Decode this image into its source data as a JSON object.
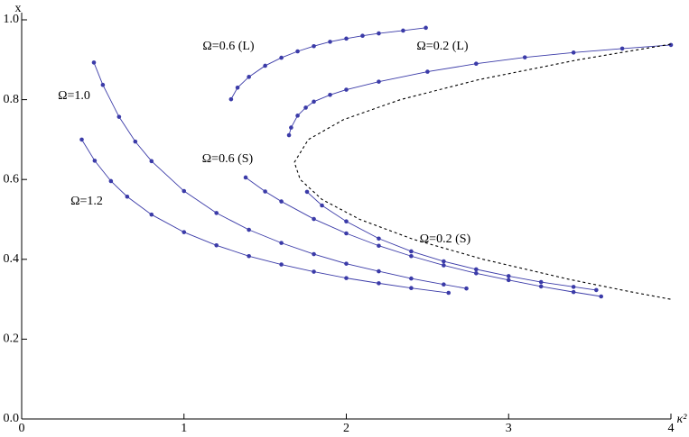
{
  "chart_data": {
    "type": "line",
    "x_label": "κ²",
    "y_label": "x",
    "xlim": [
      0,
      4
    ],
    "ylim": [
      0,
      1.0
    ],
    "xticks": [
      0,
      1,
      2,
      3,
      4
    ],
    "yticks": [
      {
        "value": 0,
        "label": "0.0"
      },
      0.2,
      0.4,
      0.6,
      0.8,
      {
        "value": 1.0,
        "label": "1.0"
      }
    ],
    "series": [
      {
        "name": "Ω=0.6 (L)",
        "color": "#3b3ba8",
        "markers": true,
        "dashed": false,
        "x": [
          1.29,
          1.33,
          1.4,
          1.5,
          1.6,
          1.7,
          1.8,
          1.9,
          2.0,
          2.1,
          2.2,
          2.35,
          2.49
        ],
        "values": [
          0.801,
          0.83,
          0.857,
          0.885,
          0.905,
          0.921,
          0.934,
          0.945,
          0.953,
          0.96,
          0.966,
          0.973,
          0.98
        ]
      },
      {
        "name": "Ω=0.2 (L)",
        "color": "#3b3ba8",
        "markers": true,
        "dashed": false,
        "x": [
          1.647,
          1.66,
          1.7,
          1.75,
          1.8,
          1.9,
          2.0,
          2.2,
          2.5,
          2.8,
          3.1,
          3.4,
          3.7,
          4.0
        ],
        "values": [
          0.711,
          0.73,
          0.76,
          0.78,
          0.795,
          0.812,
          0.825,
          0.845,
          0.87,
          0.89,
          0.906,
          0.918,
          0.928,
          0.937
        ]
      },
      {
        "name": "Ω=1.0",
        "color": "#3b3ba8",
        "markers": true,
        "dashed": false,
        "x": [
          0.445,
          0.5,
          0.6,
          0.7,
          0.8,
          1.0,
          1.2,
          1.4,
          1.6,
          1.8,
          2.0,
          2.2,
          2.4,
          2.6,
          2.74
        ],
        "values": [
          0.893,
          0.837,
          0.757,
          0.695,
          0.646,
          0.571,
          0.516,
          0.474,
          0.441,
          0.413,
          0.389,
          0.37,
          0.352,
          0.337,
          0.327
        ]
      },
      {
        "name": "Ω=0.6 (S)",
        "color": "#3b3ba8",
        "markers": true,
        "dashed": false,
        "x": [
          1.38,
          1.5,
          1.6,
          1.8,
          2.0,
          2.2,
          2.4,
          2.6,
          2.8,
          3.0,
          3.2,
          3.4,
          3.57
        ],
        "values": [
          0.605,
          0.57,
          0.545,
          0.501,
          0.465,
          0.434,
          0.408,
          0.385,
          0.365,
          0.348,
          0.332,
          0.318,
          0.307
        ]
      },
      {
        "name": "Ω=1.2",
        "color": "#3b3ba8",
        "markers": true,
        "dashed": false,
        "x": [
          0.37,
          0.45,
          0.55,
          0.65,
          0.8,
          1.0,
          1.2,
          1.4,
          1.6,
          1.8,
          2.0,
          2.2,
          2.4,
          2.63
        ],
        "values": [
          0.7,
          0.647,
          0.596,
          0.557,
          0.512,
          0.468,
          0.435,
          0.408,
          0.387,
          0.369,
          0.353,
          0.34,
          0.328,
          0.316
        ]
      },
      {
        "name": "Ω=0.2 (S)",
        "color": "#3b3ba8",
        "markers": true,
        "dashed": false,
        "x": [
          1.758,
          1.85,
          2.0,
          2.2,
          2.4,
          2.6,
          2.8,
          3.0,
          3.2,
          3.4,
          3.54
        ],
        "values": [
          0.569,
          0.535,
          0.495,
          0.452,
          0.42,
          0.395,
          0.375,
          0.358,
          0.343,
          0.331,
          0.323
        ]
      },
      {
        "color": "#000000",
        "markers": false,
        "dashed": true,
        "x": [
          3.997,
          3.735,
          3.371,
          2.843,
          2.413,
          2.083,
          1.85,
          1.716,
          1.68,
          1.766,
          1.983,
          2.333,
          2.815,
          3.43,
          4.0
        ],
        "values": [
          0.3,
          0.32,
          0.35,
          0.4,
          0.45,
          0.5,
          0.55,
          0.6,
          0.643,
          0.7,
          0.75,
          0.8,
          0.85,
          0.9,
          0.939
        ]
      }
    ]
  }
}
